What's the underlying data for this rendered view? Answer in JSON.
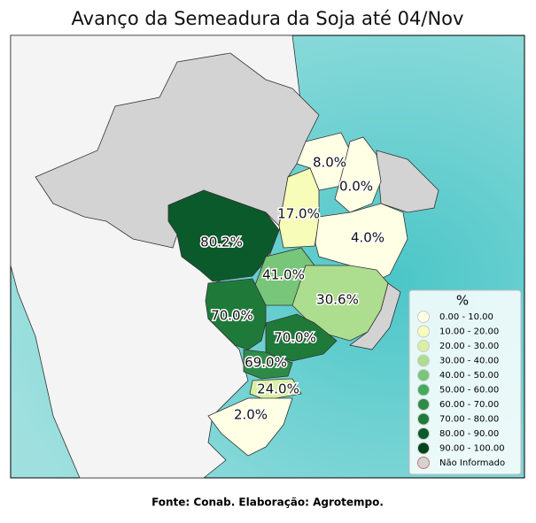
{
  "title": "Avanço da Semeadura da Soja até 04/Nov",
  "regions": [
    {
      "label": "8.0%",
      "color": "#ffffe5"
    },
    {
      "label": "0.0%",
      "color": "#ffffe5"
    },
    {
      "label": "17.0%",
      "color": "#f7fcb9"
    },
    {
      "label": "80.2%",
      "color": "#0b5a2b"
    },
    {
      "label": "4.0%",
      "color": "#ffffe5"
    },
    {
      "label": "41.0%",
      "color": "#78c679"
    },
    {
      "label": "30.6%",
      "color": "#addd8e"
    },
    {
      "label": "70.0%",
      "color": "#1f7a3a"
    },
    {
      "label": "70.0%",
      "color": "#1f7a3a"
    },
    {
      "label": "69.0%",
      "color": "#2e8b47"
    },
    {
      "label": "24.0%",
      "color": "#d9f0a3"
    },
    {
      "label": "2.0%",
      "color": "#ffffe5"
    }
  ],
  "legend": {
    "title": "%",
    "items": [
      {
        "label": "0.00 - 10.00",
        "color": "#ffffe5"
      },
      {
        "label": "10.00 - 20.00",
        "color": "#f7fcb9"
      },
      {
        "label": "20.00 - 30.00",
        "color": "#d9f0a3"
      },
      {
        "label": "30.00 - 40.00",
        "color": "#addd8e"
      },
      {
        "label": "40.00 - 50.00",
        "color": "#78c679"
      },
      {
        "label": "50.00 - 60.00",
        "color": "#41ab5d"
      },
      {
        "label": "60.00 - 70.00",
        "color": "#2e8b47"
      },
      {
        "label": "70.00 - 80.00",
        "color": "#1f7a3a"
      },
      {
        "label": "80.00 - 90.00",
        "color": "#0b5a2b"
      },
      {
        "label": "90.00 - 100.00",
        "color": "#00441b"
      },
      {
        "label": "Não Informado",
        "color": "#d3d3d3"
      }
    ]
  },
  "source": "Fonte: Conab. Elaboração: Agrotempo."
}
